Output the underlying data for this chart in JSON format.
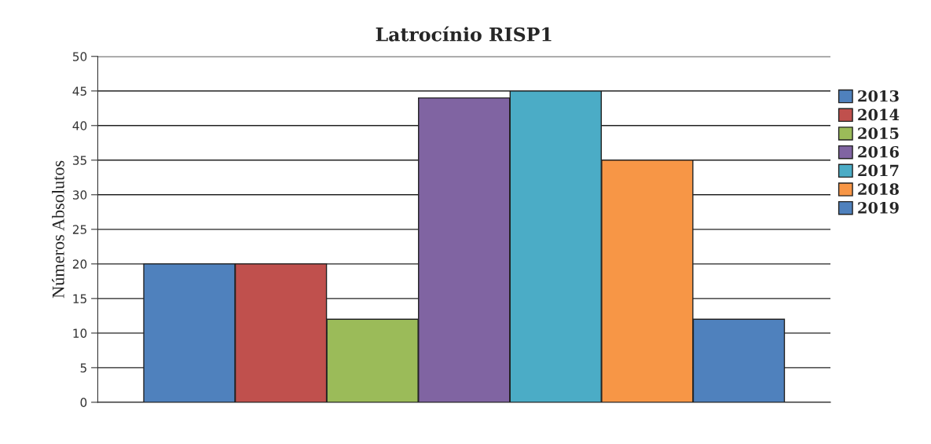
{
  "chart_data": {
    "type": "bar",
    "title": "Latrocínio RISP1",
    "ylabel": "Números Absolutos",
    "categories": [
      null
    ],
    "series": [
      {
        "name": "2013",
        "color": "#4f81bd",
        "values": [
          20
        ]
      },
      {
        "name": "2014",
        "color": "#c0504d",
        "values": [
          20
        ]
      },
      {
        "name": "2015",
        "color": "#9bbb59",
        "values": [
          12
        ]
      },
      {
        "name": "2016",
        "color": "#8064a2",
        "values": [
          44
        ]
      },
      {
        "name": "2017",
        "color": "#4bacc6",
        "values": [
          45
        ]
      },
      {
        "name": "2018",
        "color": "#f79646",
        "values": [
          35
        ]
      },
      {
        "name": "2019",
        "color": "#4f81bd",
        "values": [
          12
        ]
      }
    ],
    "ylim": [
      0,
      50
    ],
    "yticks": [
      0,
      5,
      10,
      15,
      20,
      25,
      30,
      35,
      40,
      45,
      50
    ],
    "grid": "y",
    "legend": "right"
  }
}
